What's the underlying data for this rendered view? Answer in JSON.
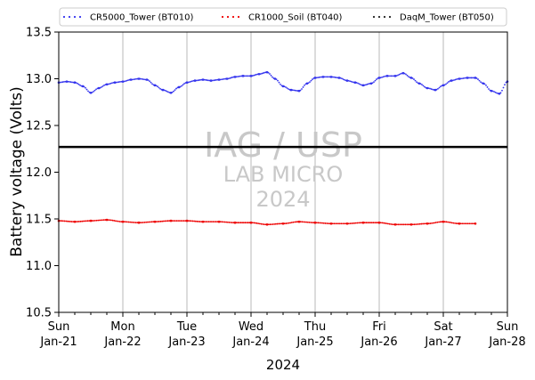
{
  "chart_data": {
    "type": "scatter",
    "title": "",
    "xlabel": "2024",
    "ylabel": "Battery voltage (Volts)",
    "xlim": [
      "2024-01-21",
      "2024-01-28"
    ],
    "ylim": [
      10.5,
      13.5
    ],
    "yticks": [
      "10.5",
      "11.0",
      "11.5",
      "12.0",
      "12.5",
      "13.0",
      "13.5"
    ],
    "xticks": [
      {
        "date": "2024-01-21",
        "day": "Sun",
        "label": "Jan-21"
      },
      {
        "date": "2024-01-22",
        "day": "Mon",
        "label": "Jan-22"
      },
      {
        "date": "2024-01-23",
        "day": "Tue",
        "label": "Jan-23"
      },
      {
        "date": "2024-01-24",
        "day": "Wed",
        "label": "Jan-24"
      },
      {
        "date": "2024-01-25",
        "day": "Thu",
        "label": "Jan-25"
      },
      {
        "date": "2024-01-26",
        "day": "Fri",
        "label": "Jan-26"
      },
      {
        "date": "2024-01-27",
        "day": "Sat",
        "label": "Jan-27"
      },
      {
        "date": "2024-01-28",
        "day": "Sun",
        "label": "Jan-28"
      }
    ],
    "grid": "vertical",
    "legend_position": "top",
    "reference_line": {
      "y": 12.27,
      "color": "#000000"
    },
    "watermark": [
      "IAG / USP",
      "LAB MICRO",
      "2024"
    ],
    "series": [
      {
        "name": "CR5000_Tower (BT010)",
        "color": "#3333ee",
        "x": [
          "2024-01-21 00:00",
          "2024-01-21 03:00",
          "2024-01-21 06:00",
          "2024-01-21 09:00",
          "2024-01-21 12:00",
          "2024-01-21 15:00",
          "2024-01-21 18:00",
          "2024-01-21 21:00",
          "2024-01-22 00:00",
          "2024-01-22 03:00",
          "2024-01-22 06:00",
          "2024-01-22 09:00",
          "2024-01-22 12:00",
          "2024-01-22 15:00",
          "2024-01-22 18:00",
          "2024-01-22 21:00",
          "2024-01-23 00:00",
          "2024-01-23 03:00",
          "2024-01-23 06:00",
          "2024-01-23 09:00",
          "2024-01-23 12:00",
          "2024-01-23 15:00",
          "2024-01-23 18:00",
          "2024-01-23 21:00",
          "2024-01-24 00:00",
          "2024-01-24 03:00",
          "2024-01-24 06:00",
          "2024-01-24 09:00",
          "2024-01-24 12:00",
          "2024-01-24 15:00",
          "2024-01-24 18:00",
          "2024-01-24 21:00",
          "2024-01-25 00:00",
          "2024-01-25 03:00",
          "2024-01-25 06:00",
          "2024-01-25 09:00",
          "2024-01-25 12:00",
          "2024-01-25 15:00",
          "2024-01-25 18:00",
          "2024-01-25 21:00",
          "2024-01-26 00:00",
          "2024-01-26 03:00",
          "2024-01-26 06:00",
          "2024-01-26 09:00",
          "2024-01-26 12:00",
          "2024-01-26 15:00",
          "2024-01-26 18:00",
          "2024-01-26 21:00",
          "2024-01-27 00:00",
          "2024-01-27 03:00",
          "2024-01-27 06:00",
          "2024-01-27 09:00",
          "2024-01-27 12:00",
          "2024-01-27 15:00",
          "2024-01-27 18:00",
          "2024-01-27 21:00",
          "2024-01-28 00:00"
        ],
        "y": [
          12.96,
          12.97,
          12.96,
          12.92,
          12.85,
          12.9,
          12.94,
          12.96,
          12.97,
          12.99,
          13.0,
          12.99,
          12.93,
          12.88,
          12.85,
          12.91,
          12.96,
          12.98,
          12.99,
          12.98,
          12.99,
          13.0,
          13.02,
          13.03,
          13.03,
          13.05,
          13.07,
          13.0,
          12.92,
          12.88,
          12.87,
          12.95,
          13.01,
          13.02,
          13.02,
          13.01,
          12.98,
          12.96,
          12.93,
          12.95,
          13.01,
          13.03,
          13.03,
          13.06,
          13.01,
          12.95,
          12.9,
          12.88,
          12.93,
          12.98,
          13.0,
          13.01,
          13.01,
          12.95,
          12.87,
          12.84,
          12.97
        ],
        "marker": "dot"
      },
      {
        "name": "CR1000_Soil (BT040)",
        "color": "#ee0000",
        "x": [
          "2024-01-21 00:00",
          "2024-01-21 06:00",
          "2024-01-21 12:00",
          "2024-01-21 18:00",
          "2024-01-22 00:00",
          "2024-01-22 06:00",
          "2024-01-22 12:00",
          "2024-01-22 18:00",
          "2024-01-23 00:00",
          "2024-01-23 06:00",
          "2024-01-23 12:00",
          "2024-01-23 18:00",
          "2024-01-24 00:00",
          "2024-01-24 06:00",
          "2024-01-24 12:00",
          "2024-01-24 18:00",
          "2024-01-25 00:00",
          "2024-01-25 06:00",
          "2024-01-25 12:00",
          "2024-01-25 18:00",
          "2024-01-26 00:00",
          "2024-01-26 06:00",
          "2024-01-26 12:00",
          "2024-01-26 18:00",
          "2024-01-27 00:00",
          "2024-01-27 06:00",
          "2024-01-27 12:00"
        ],
        "y": [
          11.48,
          11.47,
          11.48,
          11.49,
          11.47,
          11.46,
          11.47,
          11.48,
          11.48,
          11.47,
          11.47,
          11.46,
          11.46,
          11.44,
          11.45,
          11.47,
          11.46,
          11.45,
          11.45,
          11.46,
          11.46,
          11.44,
          11.44,
          11.45,
          11.47,
          11.45,
          11.45
        ],
        "marker": "dot"
      },
      {
        "name": "DaqM_Tower (BT050)",
        "color": "#222222",
        "x": [],
        "y": [],
        "marker": "dot"
      }
    ]
  }
}
